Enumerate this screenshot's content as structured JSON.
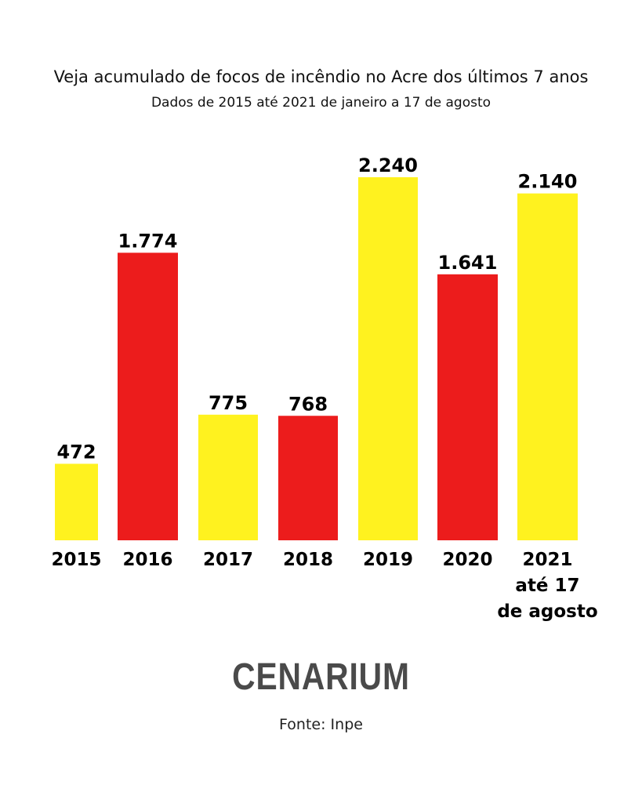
{
  "chart_data": {
    "type": "bar",
    "title": "Veja acumulado de focos de incêndio no Acre dos últimos 7 anos",
    "subtitle": "Dados de 2015 até 2021 de janeiro a 17 de agosto",
    "categories": [
      "2015",
      "2016",
      "2017",
      "2018",
      "2019",
      "2020",
      "2021 até 17 de agosto"
    ],
    "category_lines": [
      [
        "2015"
      ],
      [
        "2016"
      ],
      [
        "2017"
      ],
      [
        "2018"
      ],
      [
        "2019"
      ],
      [
        "2020"
      ],
      [
        "2021",
        "até 17",
        "de agosto"
      ]
    ],
    "values": [
      472,
      1774,
      775,
      768,
      2240,
      1641,
      2140
    ],
    "data_labels": [
      "472",
      "1.774",
      "775",
      "768",
      "2.240",
      "1.641",
      "2.140"
    ],
    "colors": [
      "#fff21f",
      "#ec1c1c",
      "#fff21f",
      "#ec1c1c",
      "#fff21f",
      "#ec1c1c",
      "#fff21f"
    ],
    "xlabel": "",
    "ylabel": "",
    "ylim": [
      0,
      2240
    ],
    "grid": false
  },
  "logo": "CENARIUM",
  "source": "Fonte: Inpe"
}
